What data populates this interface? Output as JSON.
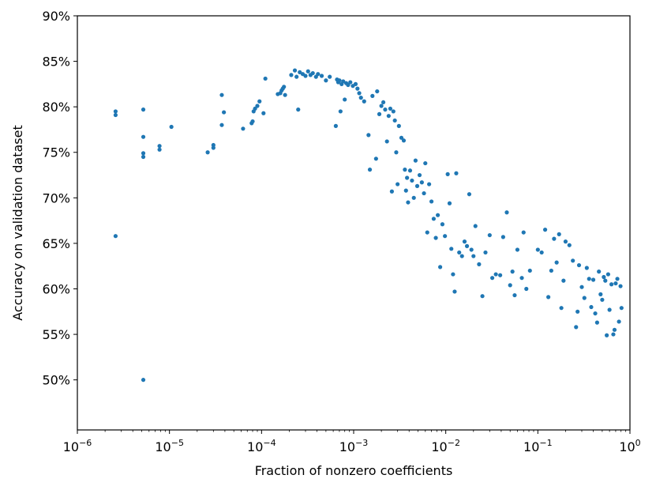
{
  "chart_data": {
    "type": "scatter",
    "title": "",
    "xlabel": "Fraction of nonzero coefficients",
    "ylabel": "Accuracy on validation dataset",
    "xscale": "log",
    "xlim": [
      1e-06,
      1
    ],
    "ylim": [
      44.5,
      90
    ],
    "grid": false,
    "legend": "none",
    "marker_color": "#1f77b4",
    "x_ticks": [
      {
        "value": 1e-06,
        "base": "10",
        "exp": "−6"
      },
      {
        "value": 1e-05,
        "base": "10",
        "exp": "−5"
      },
      {
        "value": 0.0001,
        "base": "10",
        "exp": "−4"
      },
      {
        "value": 0.001,
        "base": "10",
        "exp": "−3"
      },
      {
        "value": 0.01,
        "base": "10",
        "exp": "−2"
      },
      {
        "value": 0.1,
        "base": "10",
        "exp": "−1"
      },
      {
        "value": 1,
        "base": "10",
        "exp": "0"
      }
    ],
    "y_ticks": [
      {
        "value": 50,
        "label": "50%"
      },
      {
        "value": 55,
        "label": "55%"
      },
      {
        "value": 60,
        "label": "60%"
      },
      {
        "value": 65,
        "label": "65%"
      },
      {
        "value": 70,
        "label": "70%"
      },
      {
        "value": 75,
        "label": "75%"
      },
      {
        "value": 80,
        "label": "80%"
      },
      {
        "value": 85,
        "label": "85%"
      },
      {
        "value": 90,
        "label": "90%"
      }
    ],
    "points": [
      [
        2.6e-06,
        79.5
      ],
      [
        2.6e-06,
        79.1
      ],
      [
        2.6e-06,
        65.8
      ],
      [
        5.2e-06,
        79.7
      ],
      [
        5.2e-06,
        76.7
      ],
      [
        5.2e-06,
        74.9
      ],
      [
        5.2e-06,
        74.5
      ],
      [
        5.2e-06,
        50.0
      ],
      [
        7.8e-06,
        75.7
      ],
      [
        7.8e-06,
        75.3
      ],
      [
        1.05e-05,
        77.8
      ],
      [
        2.6e-05,
        75.0
      ],
      [
        3e-05,
        75.8
      ],
      [
        3e-05,
        75.5
      ],
      [
        3.7e-05,
        81.3
      ],
      [
        3.7e-05,
        78.0
      ],
      [
        3.9e-05,
        79.4
      ],
      [
        6.3e-05,
        77.6
      ],
      [
        7.8e-05,
        78.2
      ],
      [
        8e-05,
        78.4
      ],
      [
        8.2e-05,
        79.5
      ],
      [
        8.5e-05,
        79.8
      ],
      [
        9e-05,
        80.1
      ],
      [
        9.5e-05,
        80.6
      ],
      [
        0.000105,
        79.3
      ],
      [
        0.00011,
        83.1
      ],
      [
        0.00015,
        81.4
      ],
      [
        0.00016,
        81.5
      ],
      [
        0.000165,
        81.8
      ],
      [
        0.00017,
        82.0
      ],
      [
        0.000175,
        82.2
      ],
      [
        0.00018,
        81.3
      ],
      [
        0.00021,
        83.5
      ],
      [
        0.00023,
        84.0
      ],
      [
        0.00024,
        83.3
      ],
      [
        0.00025,
        79.7
      ],
      [
        0.00026,
        83.8
      ],
      [
        0.00028,
        83.6
      ],
      [
        0.0003,
        83.4
      ],
      [
        0.00032,
        83.9
      ],
      [
        0.00034,
        83.5
      ],
      [
        0.00036,
        83.7
      ],
      [
        0.00039,
        83.3
      ],
      [
        0.00041,
        83.6
      ],
      [
        0.00045,
        83.4
      ],
      [
        0.0005,
        82.9
      ],
      [
        0.00055,
        83.3
      ],
      [
        0.00064,
        77.9
      ],
      [
        0.00066,
        83.0
      ],
      [
        0.00068,
        82.7
      ],
      [
        0.0007,
        82.9
      ],
      [
        0.00072,
        79.5
      ],
      [
        0.00074,
        82.5
      ],
      [
        0.00077,
        82.8
      ],
      [
        0.0008,
        80.8
      ],
      [
        0.00083,
        82.6
      ],
      [
        0.00087,
        82.4
      ],
      [
        0.00092,
        82.7
      ],
      [
        0.00098,
        82.3
      ],
      [
        0.00105,
        82.5
      ],
      [
        0.0011,
        82.0
      ],
      [
        0.00115,
        81.5
      ],
      [
        0.0012,
        81.0
      ],
      [
        0.0013,
        80.6
      ],
      [
        0.00145,
        76.9
      ],
      [
        0.0015,
        73.1
      ],
      [
        0.0016,
        81.2
      ],
      [
        0.00175,
        74.3
      ],
      [
        0.0018,
        81.7
      ],
      [
        0.0019,
        79.2
      ],
      [
        0.002,
        80.1
      ],
      [
        0.0021,
        80.5
      ],
      [
        0.0022,
        79.7
      ],
      [
        0.0023,
        76.2
      ],
      [
        0.0024,
        79.0
      ],
      [
        0.0025,
        79.8
      ],
      [
        0.0026,
        70.7
      ],
      [
        0.0027,
        79.5
      ],
      [
        0.0028,
        78.5
      ],
      [
        0.0029,
        75.0
      ],
      [
        0.003,
        71.5
      ],
      [
        0.0031,
        77.9
      ],
      [
        0.0033,
        76.6
      ],
      [
        0.0035,
        76.3
      ],
      [
        0.0036,
        73.1
      ],
      [
        0.0037,
        70.8
      ],
      [
        0.0038,
        72.2
      ],
      [
        0.0039,
        69.5
      ],
      [
        0.0041,
        73.0
      ],
      [
        0.0043,
        71.9
      ],
      [
        0.0045,
        70.0
      ],
      [
        0.0047,
        74.1
      ],
      [
        0.0049,
        71.3
      ],
      [
        0.0052,
        72.5
      ],
      [
        0.0055,
        71.7
      ],
      [
        0.0058,
        70.5
      ],
      [
        0.006,
        73.8
      ],
      [
        0.0063,
        66.2
      ],
      [
        0.0066,
        71.5
      ],
      [
        0.007,
        69.6
      ],
      [
        0.0074,
        67.7
      ],
      [
        0.0078,
        65.6
      ],
      [
        0.0082,
        68.1
      ],
      [
        0.0087,
        62.4
      ],
      [
        0.0092,
        67.1
      ],
      [
        0.0098,
        65.8
      ],
      [
        0.0105,
        72.6
      ],
      [
        0.011,
        69.4
      ],
      [
        0.0115,
        64.4
      ],
      [
        0.012,
        61.6
      ],
      [
        0.0125,
        59.7
      ],
      [
        0.013,
        72.7
      ],
      [
        0.014,
        64.0
      ],
      [
        0.015,
        63.6
      ],
      [
        0.016,
        65.2
      ],
      [
        0.017,
        64.7
      ],
      [
        0.018,
        70.4
      ],
      [
        0.019,
        64.3
      ],
      [
        0.02,
        63.6
      ],
      [
        0.021,
        66.9
      ],
      [
        0.023,
        62.7
      ],
      [
        0.025,
        59.2
      ],
      [
        0.027,
        64.0
      ],
      [
        0.03,
        65.9
      ],
      [
        0.032,
        61.2
      ],
      [
        0.035,
        61.6
      ],
      [
        0.039,
        61.5
      ],
      [
        0.042,
        65.7
      ],
      [
        0.046,
        68.4
      ],
      [
        0.05,
        60.4
      ],
      [
        0.053,
        61.9
      ],
      [
        0.056,
        59.3
      ],
      [
        0.06,
        64.3
      ],
      [
        0.067,
        61.2
      ],
      [
        0.07,
        66.2
      ],
      [
        0.075,
        60.0
      ],
      [
        0.082,
        62.0
      ],
      [
        0.1,
        64.3
      ],
      [
        0.11,
        64.0
      ],
      [
        0.12,
        66.5
      ],
      [
        0.13,
        59.1
      ],
      [
        0.14,
        62.0
      ],
      [
        0.15,
        65.5
      ],
      [
        0.16,
        62.9
      ],
      [
        0.17,
        66.0
      ],
      [
        0.18,
        57.9
      ],
      [
        0.19,
        60.9
      ],
      [
        0.2,
        65.2
      ],
      [
        0.22,
        64.8
      ],
      [
        0.24,
        63.1
      ],
      [
        0.26,
        55.8
      ],
      [
        0.27,
        57.5
      ],
      [
        0.28,
        62.6
      ],
      [
        0.3,
        60.2
      ],
      [
        0.32,
        59.0
      ],
      [
        0.34,
        62.3
      ],
      [
        0.36,
        61.1
      ],
      [
        0.38,
        58.0
      ],
      [
        0.4,
        61.0
      ],
      [
        0.42,
        57.3
      ],
      [
        0.44,
        56.3
      ],
      [
        0.46,
        61.9
      ],
      [
        0.48,
        59.4
      ],
      [
        0.5,
        58.8
      ],
      [
        0.52,
        61.3
      ],
      [
        0.54,
        60.9
      ],
      [
        0.56,
        54.9
      ],
      [
        0.58,
        61.6
      ],
      [
        0.6,
        57.7
      ],
      [
        0.63,
        60.5
      ],
      [
        0.66,
        55.0
      ],
      [
        0.68,
        55.5
      ],
      [
        0.7,
        60.6
      ],
      [
        0.73,
        61.1
      ],
      [
        0.76,
        56.4
      ],
      [
        0.79,
        60.3
      ],
      [
        0.81,
        57.9
      ]
    ]
  }
}
